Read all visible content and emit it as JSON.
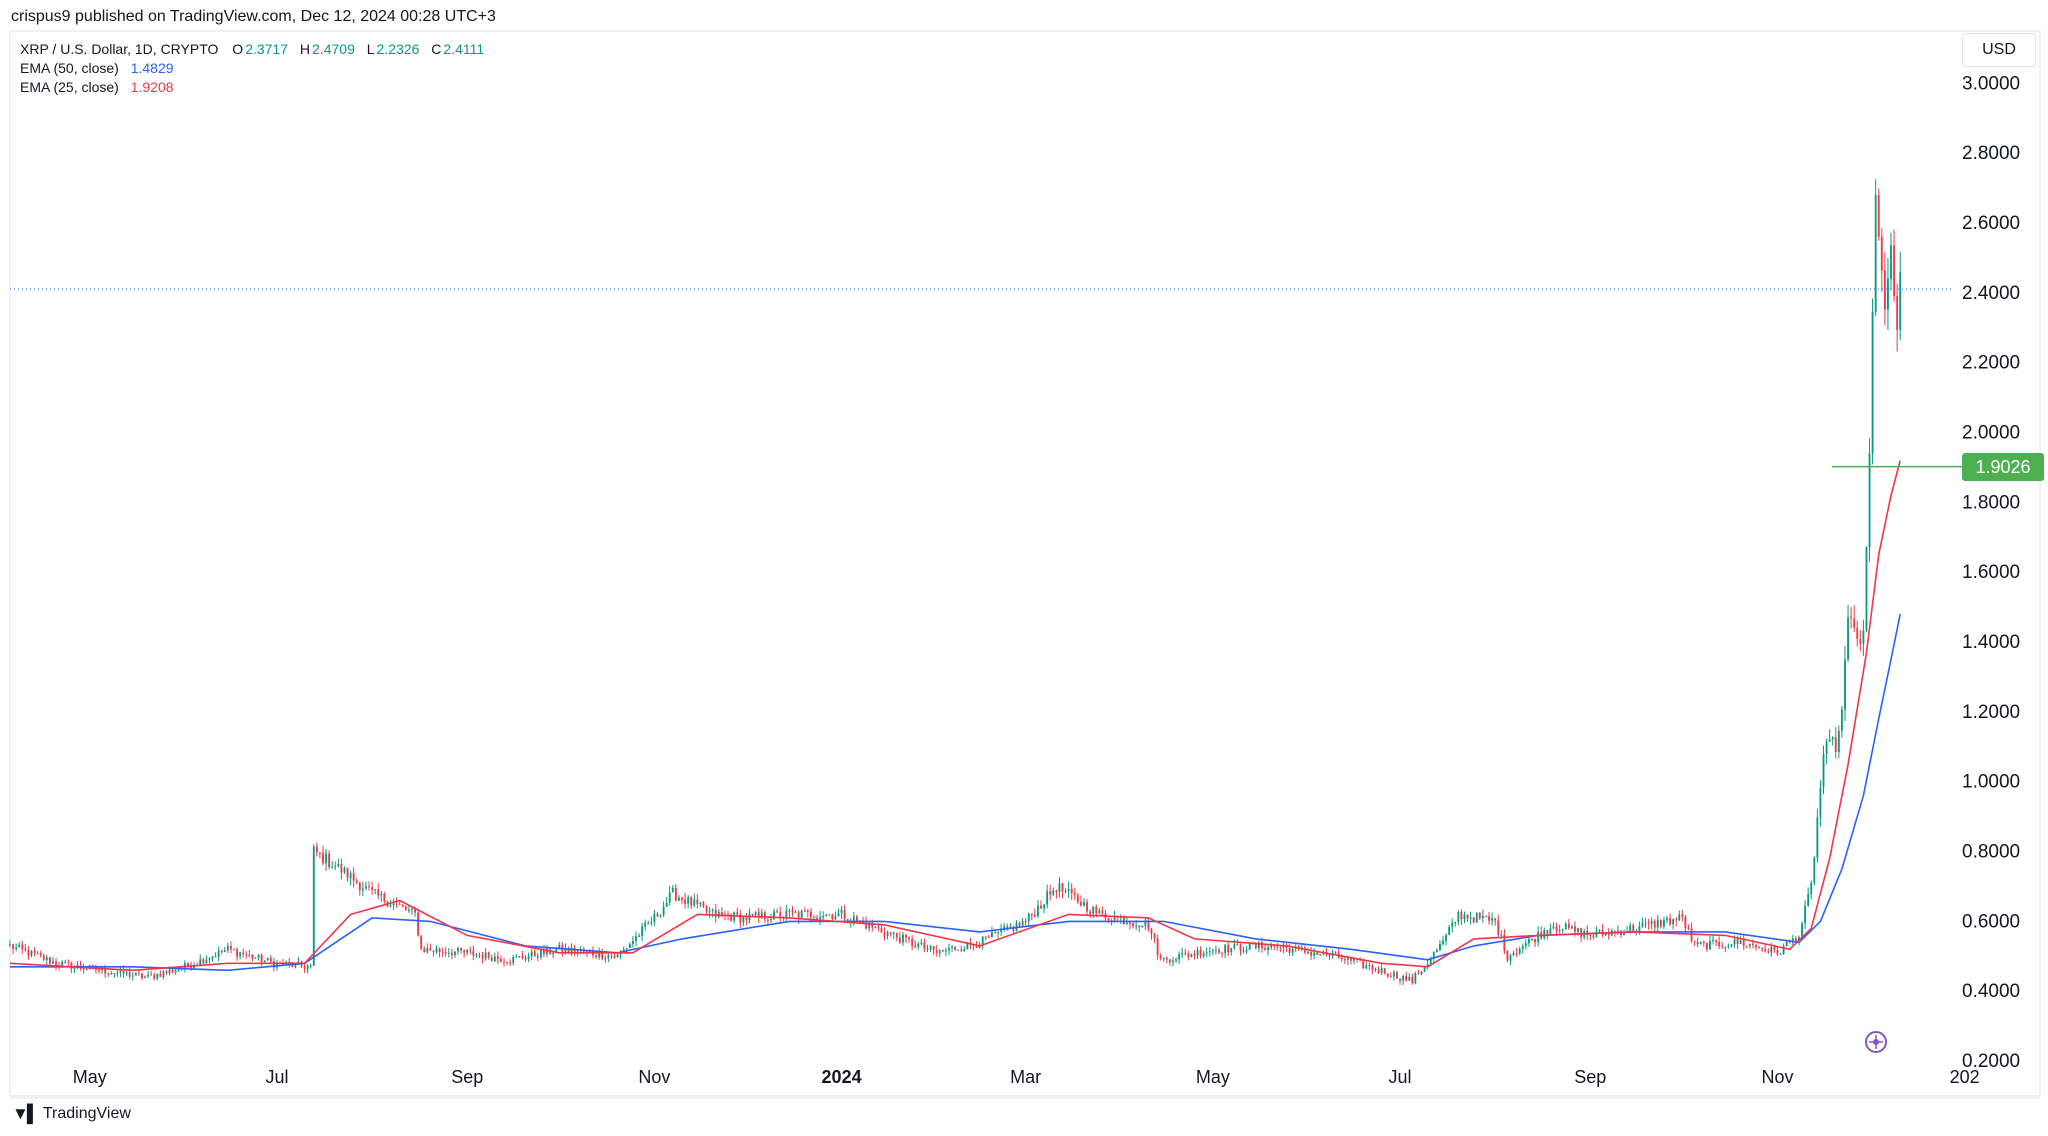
{
  "published": "crispus9 published on TradingView.com, Dec 12, 2024 00:28 UTC+3",
  "legend": {
    "symbol": "XRP / U.S. Dollar, 1D, CRYPTO",
    "open_label": "O",
    "open": "2.3717",
    "high_label": "H",
    "high": "2.4709",
    "low_label": "L",
    "low": "2.2326",
    "close_label": "C",
    "close": "2.4111",
    "ema50_label": "EMA (50, close)",
    "ema50_value": "1.4829",
    "ema25_label": "EMA (25, close)",
    "ema25_value": "1.9208"
  },
  "currency": "USD",
  "price_tag": "1.9026",
  "brand": "TradingView",
  "icons": {
    "brand": "tradingview-logo-icon",
    "navigation": "plus-circle-icon"
  },
  "colors": {
    "up": "#089981",
    "down": "#f23645",
    "ema50": "#2962ff",
    "ema25": "#f23645",
    "price_line": "#4caf50",
    "last_price_line": "#2962ff"
  },
  "chart_data": {
    "type": "line",
    "y_ticks": [
      "0.2000",
      "0.4000",
      "0.6000",
      "0.8000",
      "1.0000",
      "1.2000",
      "1.4000",
      "1.6000",
      "1.8000",
      "2.0000",
      "2.2000",
      "2.4000",
      "2.6000",
      "2.8000",
      "3.0000"
    ],
    "x_ticks": [
      {
        "label": "May",
        "date": "2023-05-01",
        "bold": false
      },
      {
        "label": "Jul",
        "date": "2023-07-01",
        "bold": false
      },
      {
        "label": "Sep",
        "date": "2023-09-01",
        "bold": false
      },
      {
        "label": "Nov",
        "date": "2023-11-01",
        "bold": false
      },
      {
        "label": "2024",
        "date": "2024-01-01",
        "bold": true
      },
      {
        "label": "Mar",
        "date": "2024-03-01",
        "bold": false
      },
      {
        "label": "May",
        "date": "2024-05-01",
        "bold": false
      },
      {
        "label": "Jul",
        "date": "2024-07-01",
        "bold": false
      },
      {
        "label": "Sep",
        "date": "2024-09-01",
        "bold": false
      },
      {
        "label": "Nov",
        "date": "2024-11-01",
        "bold": false
      },
      {
        "label": "202",
        "date": "2025-01-01",
        "bold": false
      }
    ],
    "x_range": [
      "2023-04-05",
      "2025-01-06"
    ],
    "ylim": [
      0.1,
      3.15
    ],
    "last_price": 2.4111,
    "horizontal_line": 1.9026,
    "price_path": [
      [
        "2023-04-05",
        0.53
      ],
      [
        "2023-04-20",
        0.48
      ],
      [
        "2023-05-05",
        0.46
      ],
      [
        "2023-05-20",
        0.44
      ],
      [
        "2023-06-01",
        0.47
      ],
      [
        "2023-06-15",
        0.52
      ],
      [
        "2023-06-30",
        0.48
      ],
      [
        "2023-07-12",
        0.47
      ],
      [
        "2023-07-13",
        0.8
      ],
      [
        "2023-07-20",
        0.76
      ],
      [
        "2023-08-01",
        0.68
      ],
      [
        "2023-08-15",
        0.62
      ],
      [
        "2023-08-17",
        0.52
      ],
      [
        "2023-09-01",
        0.51
      ],
      [
        "2023-09-15",
        0.49
      ],
      [
        "2023-10-01",
        0.52
      ],
      [
        "2023-10-20",
        0.5
      ],
      [
        "2023-11-01",
        0.61
      ],
      [
        "2023-11-07",
        0.68
      ],
      [
        "2023-11-20",
        0.62
      ],
      [
        "2023-12-01",
        0.61
      ],
      [
        "2023-12-15",
        0.62
      ],
      [
        "2024-01-01",
        0.62
      ],
      [
        "2024-01-15",
        0.57
      ],
      [
        "2024-02-01",
        0.51
      ],
      [
        "2024-02-15",
        0.54
      ],
      [
        "2024-03-01",
        0.6
      ],
      [
        "2024-03-11",
        0.7
      ],
      [
        "2024-03-25",
        0.62
      ],
      [
        "2024-04-10",
        0.59
      ],
      [
        "2024-04-14",
        0.49
      ],
      [
        "2024-05-01",
        0.52
      ],
      [
        "2024-05-20",
        0.53
      ],
      [
        "2024-06-10",
        0.5
      ],
      [
        "2024-07-05",
        0.43
      ],
      [
        "2024-07-15",
        0.54
      ],
      [
        "2024-07-20",
        0.62
      ],
      [
        "2024-08-01",
        0.6
      ],
      [
        "2024-08-05",
        0.5
      ],
      [
        "2024-08-20",
        0.59
      ],
      [
        "2024-09-01",
        0.56
      ],
      [
        "2024-09-15",
        0.58
      ],
      [
        "2024-10-01",
        0.61
      ],
      [
        "2024-10-05",
        0.53
      ],
      [
        "2024-10-20",
        0.54
      ],
      [
        "2024-11-01",
        0.51
      ],
      [
        "2024-11-08",
        0.56
      ],
      [
        "2024-11-12",
        0.7
      ],
      [
        "2024-11-16",
        1.08
      ],
      [
        "2024-11-21",
        1.12
      ],
      [
        "2024-11-24",
        1.45
      ],
      [
        "2024-11-29",
        1.4
      ],
      [
        "2024-12-01",
        1.92
      ],
      [
        "2024-12-03",
        2.72
      ],
      [
        "2024-12-06",
        2.3
      ],
      [
        "2024-12-08",
        2.55
      ],
      [
        "2024-12-10",
        2.25
      ],
      [
        "2024-12-11",
        2.41
      ]
    ],
    "ema50": [
      [
        "2023-04-05",
        0.47
      ],
      [
        "2023-05-15",
        0.47
      ],
      [
        "2023-06-15",
        0.46
      ],
      [
        "2023-07-10",
        0.48
      ],
      [
        "2023-08-01",
        0.61
      ],
      [
        "2023-08-20",
        0.6
      ],
      [
        "2023-09-20",
        0.53
      ],
      [
        "2023-10-20",
        0.51
      ],
      [
        "2023-11-10",
        0.55
      ],
      [
        "2023-12-15",
        0.6
      ],
      [
        "2024-01-15",
        0.6
      ],
      [
        "2024-02-15",
        0.57
      ],
      [
        "2024-03-15",
        0.6
      ],
      [
        "2024-04-15",
        0.6
      ],
      [
        "2024-05-15",
        0.55
      ],
      [
        "2024-06-15",
        0.52
      ],
      [
        "2024-07-10",
        0.49
      ],
      [
        "2024-07-25",
        0.53
      ],
      [
        "2024-08-15",
        0.56
      ],
      [
        "2024-09-15",
        0.57
      ],
      [
        "2024-10-15",
        0.57
      ],
      [
        "2024-11-08",
        0.54
      ],
      [
        "2024-11-15",
        0.6
      ],
      [
        "2024-11-22",
        0.75
      ],
      [
        "2024-11-29",
        0.96
      ],
      [
        "2024-12-04",
        1.18
      ],
      [
        "2024-12-08",
        1.35
      ],
      [
        "2024-12-11",
        1.48
      ]
    ],
    "ema25": [
      [
        "2023-04-05",
        0.48
      ],
      [
        "2023-05-15",
        0.46
      ],
      [
        "2023-06-15",
        0.48
      ],
      [
        "2023-07-10",
        0.48
      ],
      [
        "2023-07-25",
        0.62
      ],
      [
        "2023-08-10",
        0.66
      ],
      [
        "2023-09-01",
        0.56
      ],
      [
        "2023-10-01",
        0.51
      ],
      [
        "2023-10-25",
        0.51
      ],
      [
        "2023-11-15",
        0.62
      ],
      [
        "2023-12-15",
        0.61
      ],
      [
        "2024-01-15",
        0.59
      ],
      [
        "2024-02-15",
        0.53
      ],
      [
        "2024-03-15",
        0.62
      ],
      [
        "2024-04-10",
        0.61
      ],
      [
        "2024-04-25",
        0.55
      ],
      [
        "2024-05-25",
        0.53
      ],
      [
        "2024-06-25",
        0.48
      ],
      [
        "2024-07-10",
        0.47
      ],
      [
        "2024-07-25",
        0.55
      ],
      [
        "2024-08-15",
        0.56
      ],
      [
        "2024-09-15",
        0.57
      ],
      [
        "2024-10-15",
        0.56
      ],
      [
        "2024-11-05",
        0.52
      ],
      [
        "2024-11-12",
        0.58
      ],
      [
        "2024-11-18",
        0.78
      ],
      [
        "2024-11-24",
        1.05
      ],
      [
        "2024-11-30",
        1.37
      ],
      [
        "2024-12-04",
        1.65
      ],
      [
        "2024-12-08",
        1.82
      ],
      [
        "2024-12-11",
        1.92
      ]
    ]
  }
}
